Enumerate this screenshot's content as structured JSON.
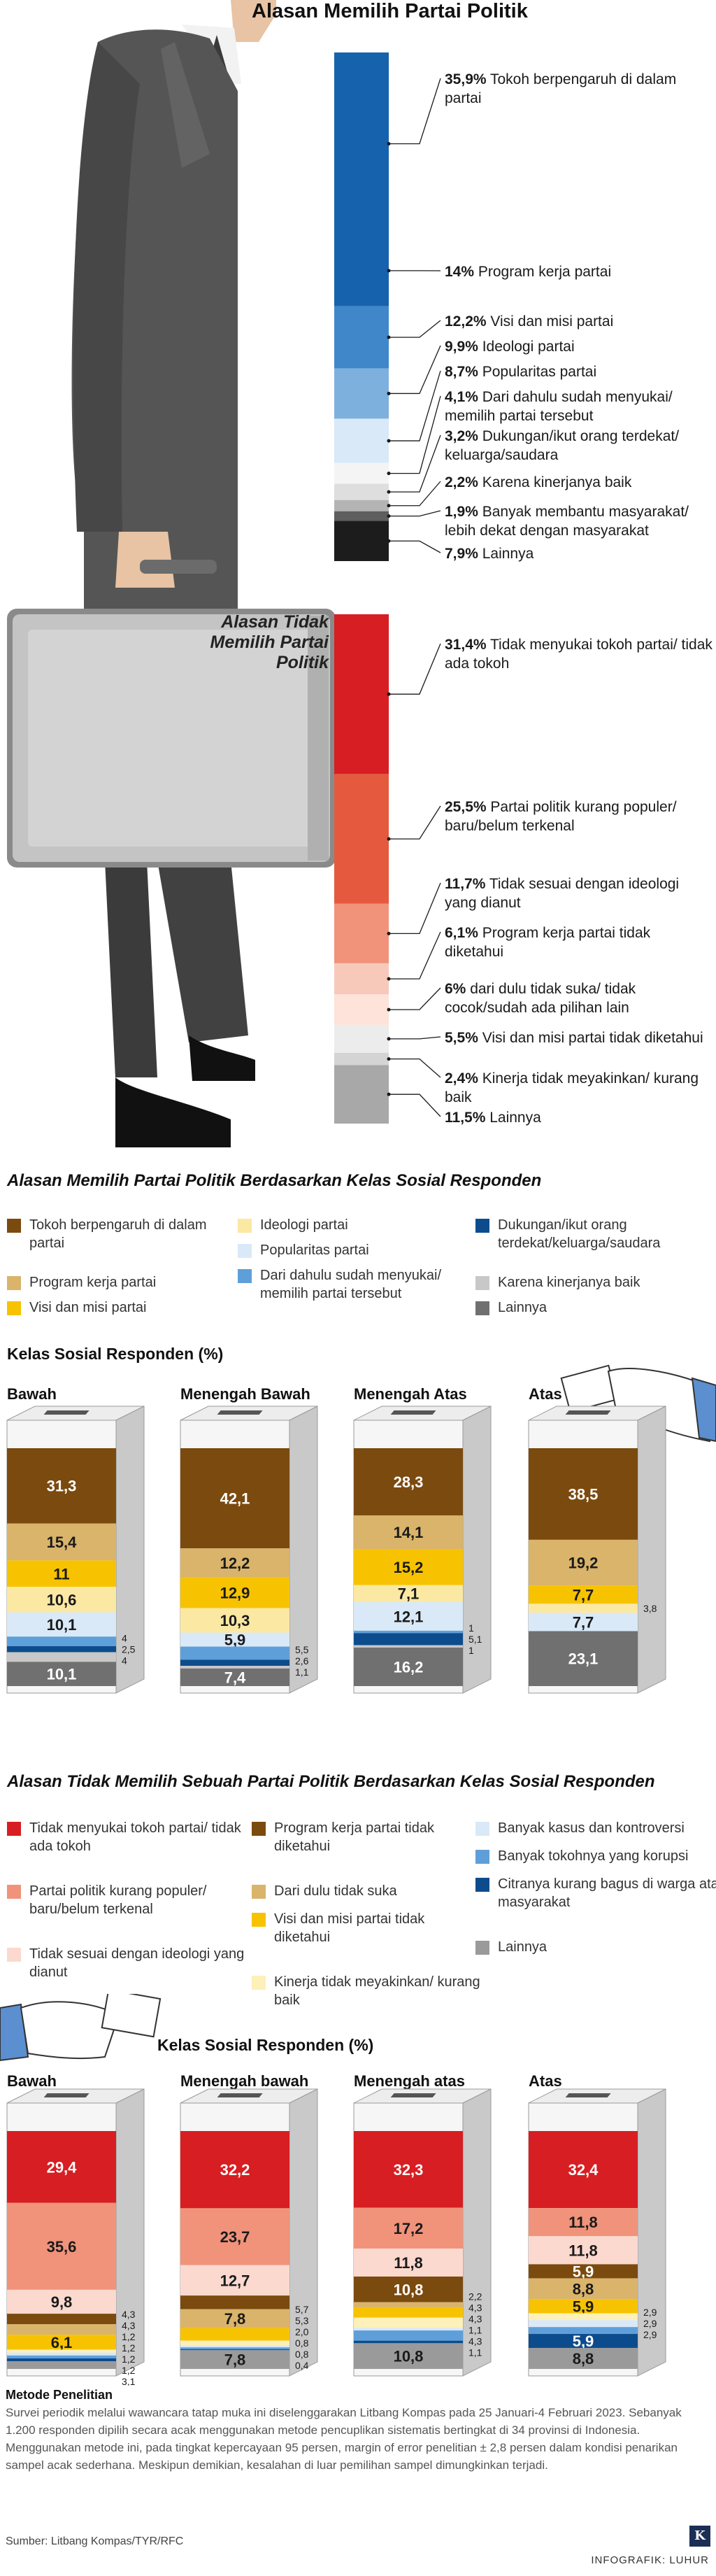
{
  "title": "Alasan Memilih Partai Politik",
  "briefcase_title": "Alasan Tidak Memilih Partai Politik",
  "colors": {
    "blue_dark": "#1762ad",
    "blue_mid": "#3f87c9",
    "blue_light": "#7eb0de",
    "blue_pale": "#d9e9f7",
    "red": "#d71e22",
    "red_mid": "#e55a3e",
    "salmon": "#f0937a",
    "peach": "#f7c9bb",
    "brown": "#7b4a0f",
    "khaki": "#d9b46a",
    "yellow": "#f7c300",
    "cream": "#fbe8a3",
    "navy": "#0d4c8c",
    "grey_light": "#b4b4b4",
    "grey": "#707070",
    "black": "#1c1c1c"
  },
  "chart_data": [
    {
      "type": "bar",
      "orientation": "stacked-vertical",
      "title": "Alasan Memilih Partai Politik",
      "categories": [
        "Tokoh berpengaruh di dalam partai",
        "Program kerja partai",
        "Visi dan misi partai",
        "Ideologi partai",
        "Popularitas partai",
        "Dari dahulu sudah menyukai/ memilih partai tersebut",
        "Dukungan/ikut orang terdekat/ keluarga/saudara",
        "Karena kinerjanya baik",
        "Banyak membantu masyarakat/ lebih dekat dengan masyarakat",
        "Lainnya"
      ],
      "values": [
        35.9,
        14,
        12.2,
        9.9,
        8.7,
        4.1,
        3.2,
        2.2,
        1.9,
        7.9
      ],
      "value_labels": [
        "35,9%",
        "14%",
        "12,2%",
        "9,9%",
        "8,7%",
        "4,1%",
        "3,2%",
        "2,2%",
        "1,9%",
        "7,9%"
      ],
      "colors": [
        "#1762ad",
        "#1762ad",
        "#3f87c9",
        "#7eb0de",
        "#d9e9f7",
        "#f4f4f4",
        "#dedede",
        "#b4b4b4",
        "#5e5e5e",
        "#1c1c1c"
      ],
      "label_y": [
        100,
        375,
        446,
        482,
        518,
        554,
        610,
        676,
        718,
        778
      ]
    },
    {
      "type": "bar",
      "orientation": "stacked-vertical",
      "title": "Alasan Tidak Memilih Partai Politik",
      "categories": [
        "Tidak menyukai tokoh partai/ tidak ada tokoh",
        "Partai politik kurang populer/ baru/belum terkenal",
        "Tidak sesuai dengan ideologi yang dianut",
        "Program kerja partai tidak diketahui",
        "dari dulu tidak suka/ tidak cocok/sudah ada pilihan lain",
        "Visi dan misi partai tidak diketahui",
        "Kinerja tidak meyakinkan/ kurang baik",
        "Lainnya"
      ],
      "values": [
        31.4,
        25.5,
        11.7,
        6.1,
        6,
        5.5,
        2.4,
        11.5
      ],
      "value_labels": [
        "31,4%",
        "25,5%",
        "11,7%",
        "6,1%",
        "6%",
        "5,5%",
        "2,4%",
        "11,5%"
      ],
      "colors": [
        "#d71e22",
        "#e55a3e",
        "#f0937a",
        "#f7c9bb",
        "#fde3da",
        "#ececec",
        "#d4d4d4",
        "#a8a8a8"
      ],
      "label_y": [
        908,
        1140,
        1250,
        1320,
        1400,
        1470,
        1528,
        1584
      ]
    },
    {
      "type": "bar",
      "orientation": "stacked-vertical",
      "title": "Alasan Memilih Partai Politik Berdasarkan Kelas Sosial Responden",
      "subtitle": "Kelas Sosial Responden (%)",
      "categories": [
        "Bawah",
        "Menengah Bawah",
        "Menengah Atas",
        "Atas"
      ],
      "series": [
        {
          "name": "Tokoh berpengaruh di dalam partai",
          "color": "#7b4a0f",
          "values": [
            31.3,
            42.1,
            28.3,
            38.5
          ]
        },
        {
          "name": "Program kerja partai",
          "color": "#d9b46a",
          "values": [
            15.4,
            12.2,
            14.1,
            19.2
          ]
        },
        {
          "name": "Visi dan misi partai",
          "color": "#f7c300",
          "values": [
            11,
            12.9,
            15.2,
            7.7
          ]
        },
        {
          "name": "Ideologi partai",
          "color": "#fbe8a3",
          "values": [
            10.6,
            10.3,
            7.1,
            3.8
          ]
        },
        {
          "name": "Popularitas partai",
          "color": "#d9e9f7",
          "values": [
            10.1,
            5.9,
            12.1,
            7.7
          ]
        },
        {
          "name": "Dari dahulu sudah menyukai/ memilih partai tersebut",
          "color": "#5f9fd9",
          "values": [
            4,
            5.5,
            1,
            0
          ]
        },
        {
          "name": "Dukungan/ikut orang terdekat/keluarga/saudara",
          "color": "#0d4c8c",
          "values": [
            2.5,
            2.6,
            5.1,
            0
          ]
        },
        {
          "name": "Karena kinerjanya baik",
          "color": "#c8c8c8",
          "values": [
            4,
            1.1,
            1,
            0
          ]
        },
        {
          "name": "Lainnya",
          "color": "#707070",
          "values": [
            10.1,
            7.4,
            16.2,
            23.1
          ]
        }
      ],
      "labels": [
        [
          "31,3",
          "15,4",
          "11",
          "10,6",
          "10,1",
          "4",
          "2,5",
          "4",
          "10,1"
        ],
        [
          "42,1",
          "12,2",
          "12,9",
          "10,3",
          "5,9",
          "5,5",
          "2,6",
          "1,1",
          "7,4"
        ],
        [
          "28,3",
          "14,1",
          "15,2",
          "7,1",
          "12,1",
          "1",
          "5,1",
          "1",
          "16,2"
        ],
        [
          "38,5",
          "19,2",
          "7,7",
          "3,8",
          "7,7",
          "",
          "",
          "",
          "23,1"
        ]
      ]
    },
    {
      "type": "bar",
      "orientation": "stacked-vertical",
      "title": "Alasan Tidak Memilih Sebuah Partai Politik Berdasarkan Kelas Sosial Responden",
      "subtitle": "Kelas Sosial Responden (%)",
      "categories": [
        "Bawah",
        "Menengah bawah",
        "Menengah atas",
        "Atas"
      ],
      "series": [
        {
          "name": "Tidak menyukai tokoh partai/ tidak ada tokoh",
          "color": "#d71e22",
          "values": [
            29.4,
            32.2,
            32.3,
            32.4
          ]
        },
        {
          "name": "Partai politik kurang populer/ baru/belum terkenal",
          "color": "#f0937a",
          "values": [
            35.6,
            23.7,
            17.2,
            11.8
          ]
        },
        {
          "name": "Tidak sesuai dengan ideologi yang dianut",
          "color": "#fbd9cf",
          "values": [
            9.8,
            12.7,
            11.8,
            11.8
          ]
        },
        {
          "name": "Program kerja partai tidak diketahui",
          "color": "#7b4a0f",
          "values": [
            4.3,
            5.7,
            10.8,
            5.9
          ]
        },
        {
          "name": "Dari dulu tidak suka",
          "color": "#d9b46a",
          "values": [
            4.3,
            7.8,
            2.2,
            8.8
          ]
        },
        {
          "name": "Visi dan misi partai tidak diketahui",
          "color": "#f7c300",
          "values": [
            6.1,
            5.3,
            4.3,
            5.9
          ]
        },
        {
          "name": "Kinerja tidak meyakinkan/ kurang baik",
          "color": "#fdf0b8",
          "values": [
            1.2,
            2.0,
            4.3,
            2.9
          ]
        },
        {
          "name": "Banyak kasus dan kontroversi",
          "color": "#d9e9f7",
          "values": [
            1.2,
            0.8,
            1.1,
            2.9
          ]
        },
        {
          "name": "Banyak tokohnya yang korupsi",
          "color": "#5f9fd9",
          "values": [
            1.2,
            0.8,
            4.3,
            2.9
          ]
        },
        {
          "name": "Citranya kurang bagus di warga atau masyarakat",
          "color": "#0d4c8c",
          "values": [
            1.2,
            0.4,
            1.1,
            5.9
          ]
        },
        {
          "name": "Lainnya",
          "color": "#9a9a9a",
          "values": [
            3.1,
            7.8,
            10.8,
            8.8
          ]
        }
      ],
      "labels": [
        [
          "29,4",
          "35,6",
          "9,8",
          "4,3",
          "4,3",
          "6,1",
          "1,2",
          "1,2",
          "1,2",
          "1,2",
          "3,1"
        ],
        [
          "32,2",
          "23,7",
          "12,7",
          "5,7",
          "7,8",
          "5,3",
          "2,0",
          "0,8",
          "0,8",
          "0,4",
          "7,8"
        ],
        [
          "32,3",
          "17,2",
          "11,8",
          "10,8",
          "2,2",
          "4,3",
          "4,3",
          "1,1",
          "4,3",
          "1,1",
          "10,8"
        ],
        [
          "32,4",
          "11,8",
          "11,8",
          "5,9",
          "8,8",
          "5,9",
          "2,9",
          "2,9",
          "2,9",
          "5,9",
          "8,8"
        ]
      ]
    }
  ],
  "legend1": [
    {
      "label": "Tokoh berpengaruh di dalam partai",
      "color": "#7b4a0f"
    },
    {
      "label": "Program kerja partai",
      "color": "#d9b46a"
    },
    {
      "label": "Visi dan misi partai",
      "color": "#f7c300"
    },
    {
      "label": "Ideologi partai",
      "color": "#fbe8a3"
    },
    {
      "label": "Popularitas partai",
      "color": "#d9e9f7"
    },
    {
      "label": "Dari dahulu sudah menyukai/ memilih partai tersebut",
      "color": "#5f9fd9"
    },
    {
      "label": "Dukungan/ikut orang terdekat/keluarga/saudara",
      "color": "#0d4c8c"
    },
    {
      "label": "Karena kinerjanya baik",
      "color": "#c8c8c8"
    },
    {
      "label": "Lainnya",
      "color": "#707070"
    }
  ],
  "legend2": [
    {
      "label": "Tidak menyukai tokoh partai/ tidak ada tokoh",
      "color": "#d71e22"
    },
    {
      "label": "Partai politik kurang populer/ baru/belum terkenal",
      "color": "#f0937a"
    },
    {
      "label": "Tidak sesuai dengan ideologi yang dianut",
      "color": "#fbd9cf"
    },
    {
      "label": "Program kerja partai tidak diketahui",
      "color": "#7b4a0f"
    },
    {
      "label": "Dari dulu tidak suka",
      "color": "#d9b46a"
    },
    {
      "label": "Visi dan misi partai tidak diketahui",
      "color": "#f7c300"
    },
    {
      "label": "Kinerja tidak meyakinkan/ kurang baik",
      "color": "#fdf0b8"
    },
    {
      "label": "Banyak kasus dan kontroversi",
      "color": "#d9e9f7"
    },
    {
      "label": "Banyak tokohnya yang korupsi",
      "color": "#5f9fd9"
    },
    {
      "label": "Citranya kurang bagus di warga atau masyarakat",
      "color": "#0d4c8c"
    },
    {
      "label": "Lainnya",
      "color": "#9a9a9a"
    }
  ],
  "methodology": {
    "heading": "Metode Penelitian",
    "text": "Survei periodik melalui wawancara tatap muka ini diselenggarakan Litbang Kompas pada 25 Januari-4 Februari 2023. Sebanyak 1.200 responden dipilih secara acak menggunakan metode pencuplikan sistematis bertingkat di 34 provinsi di Indonesia. Menggunakan metode ini, pada tingkat kepercayaan 95 persen, margin of error penelitian ± 2,8 persen dalam kondisi penarikan sampel acak sederhana. Meskipun demikian, kesalahan di luar pemilihan sampel dimungkinkan terjadi."
  },
  "source": "Sumber: Litbang Kompas/TYR/RFC",
  "credit": "INFOGRAFIK: LUHUR",
  "logo_letter": "K"
}
